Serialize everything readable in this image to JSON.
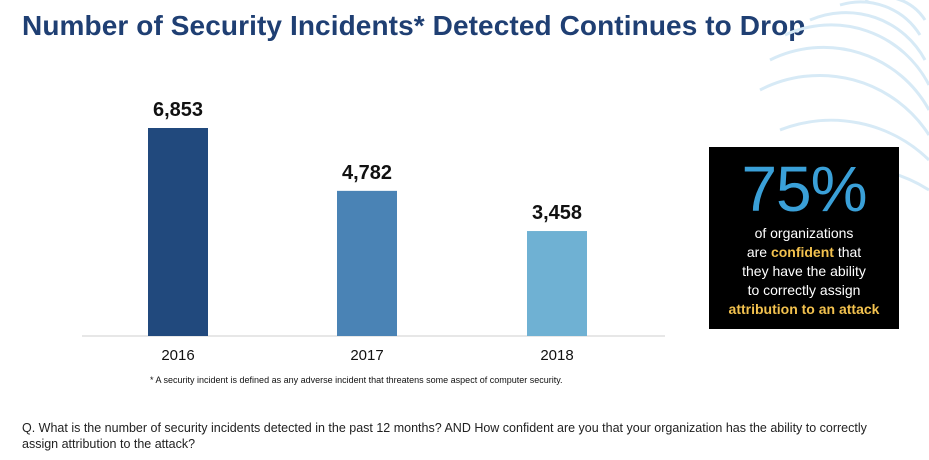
{
  "title": "Number of Security Incidents* Detected Continues to Drop",
  "chart_data": {
    "type": "bar",
    "categories": [
      "2016",
      "2017",
      "2018"
    ],
    "values": [
      6853,
      4782,
      3458
    ],
    "value_labels": [
      "6,853",
      "4,782",
      "3,458"
    ],
    "colors": [
      "#21497d",
      "#4a83b5",
      "#6fb1d3"
    ],
    "title": "",
    "xlabel": "",
    "ylabel": "",
    "ylim": [
      0,
      6853
    ],
    "grid": false
  },
  "footnote": "* A security incident is defined as any adverse incident that threatens some aspect of computer security.",
  "callout": {
    "percent": "75%",
    "line1": "of organizations",
    "line2_pre": "are ",
    "line2_hl": "confident",
    "line2_post": " that",
    "line3": "they have the ability",
    "line4": "to correctly assign",
    "line5_hl": "attribution to an attack"
  },
  "question": "Q. What is the number of security incidents detected in the past 12 months? AND How confident are you that your organization has the ability to correctly assign attribution to the attack?",
  "colors": {
    "title": "#1f3f73",
    "callout_bg": "#000000",
    "callout_accent": "#3aa0d8",
    "callout_highlight": "#f2c14e"
  }
}
